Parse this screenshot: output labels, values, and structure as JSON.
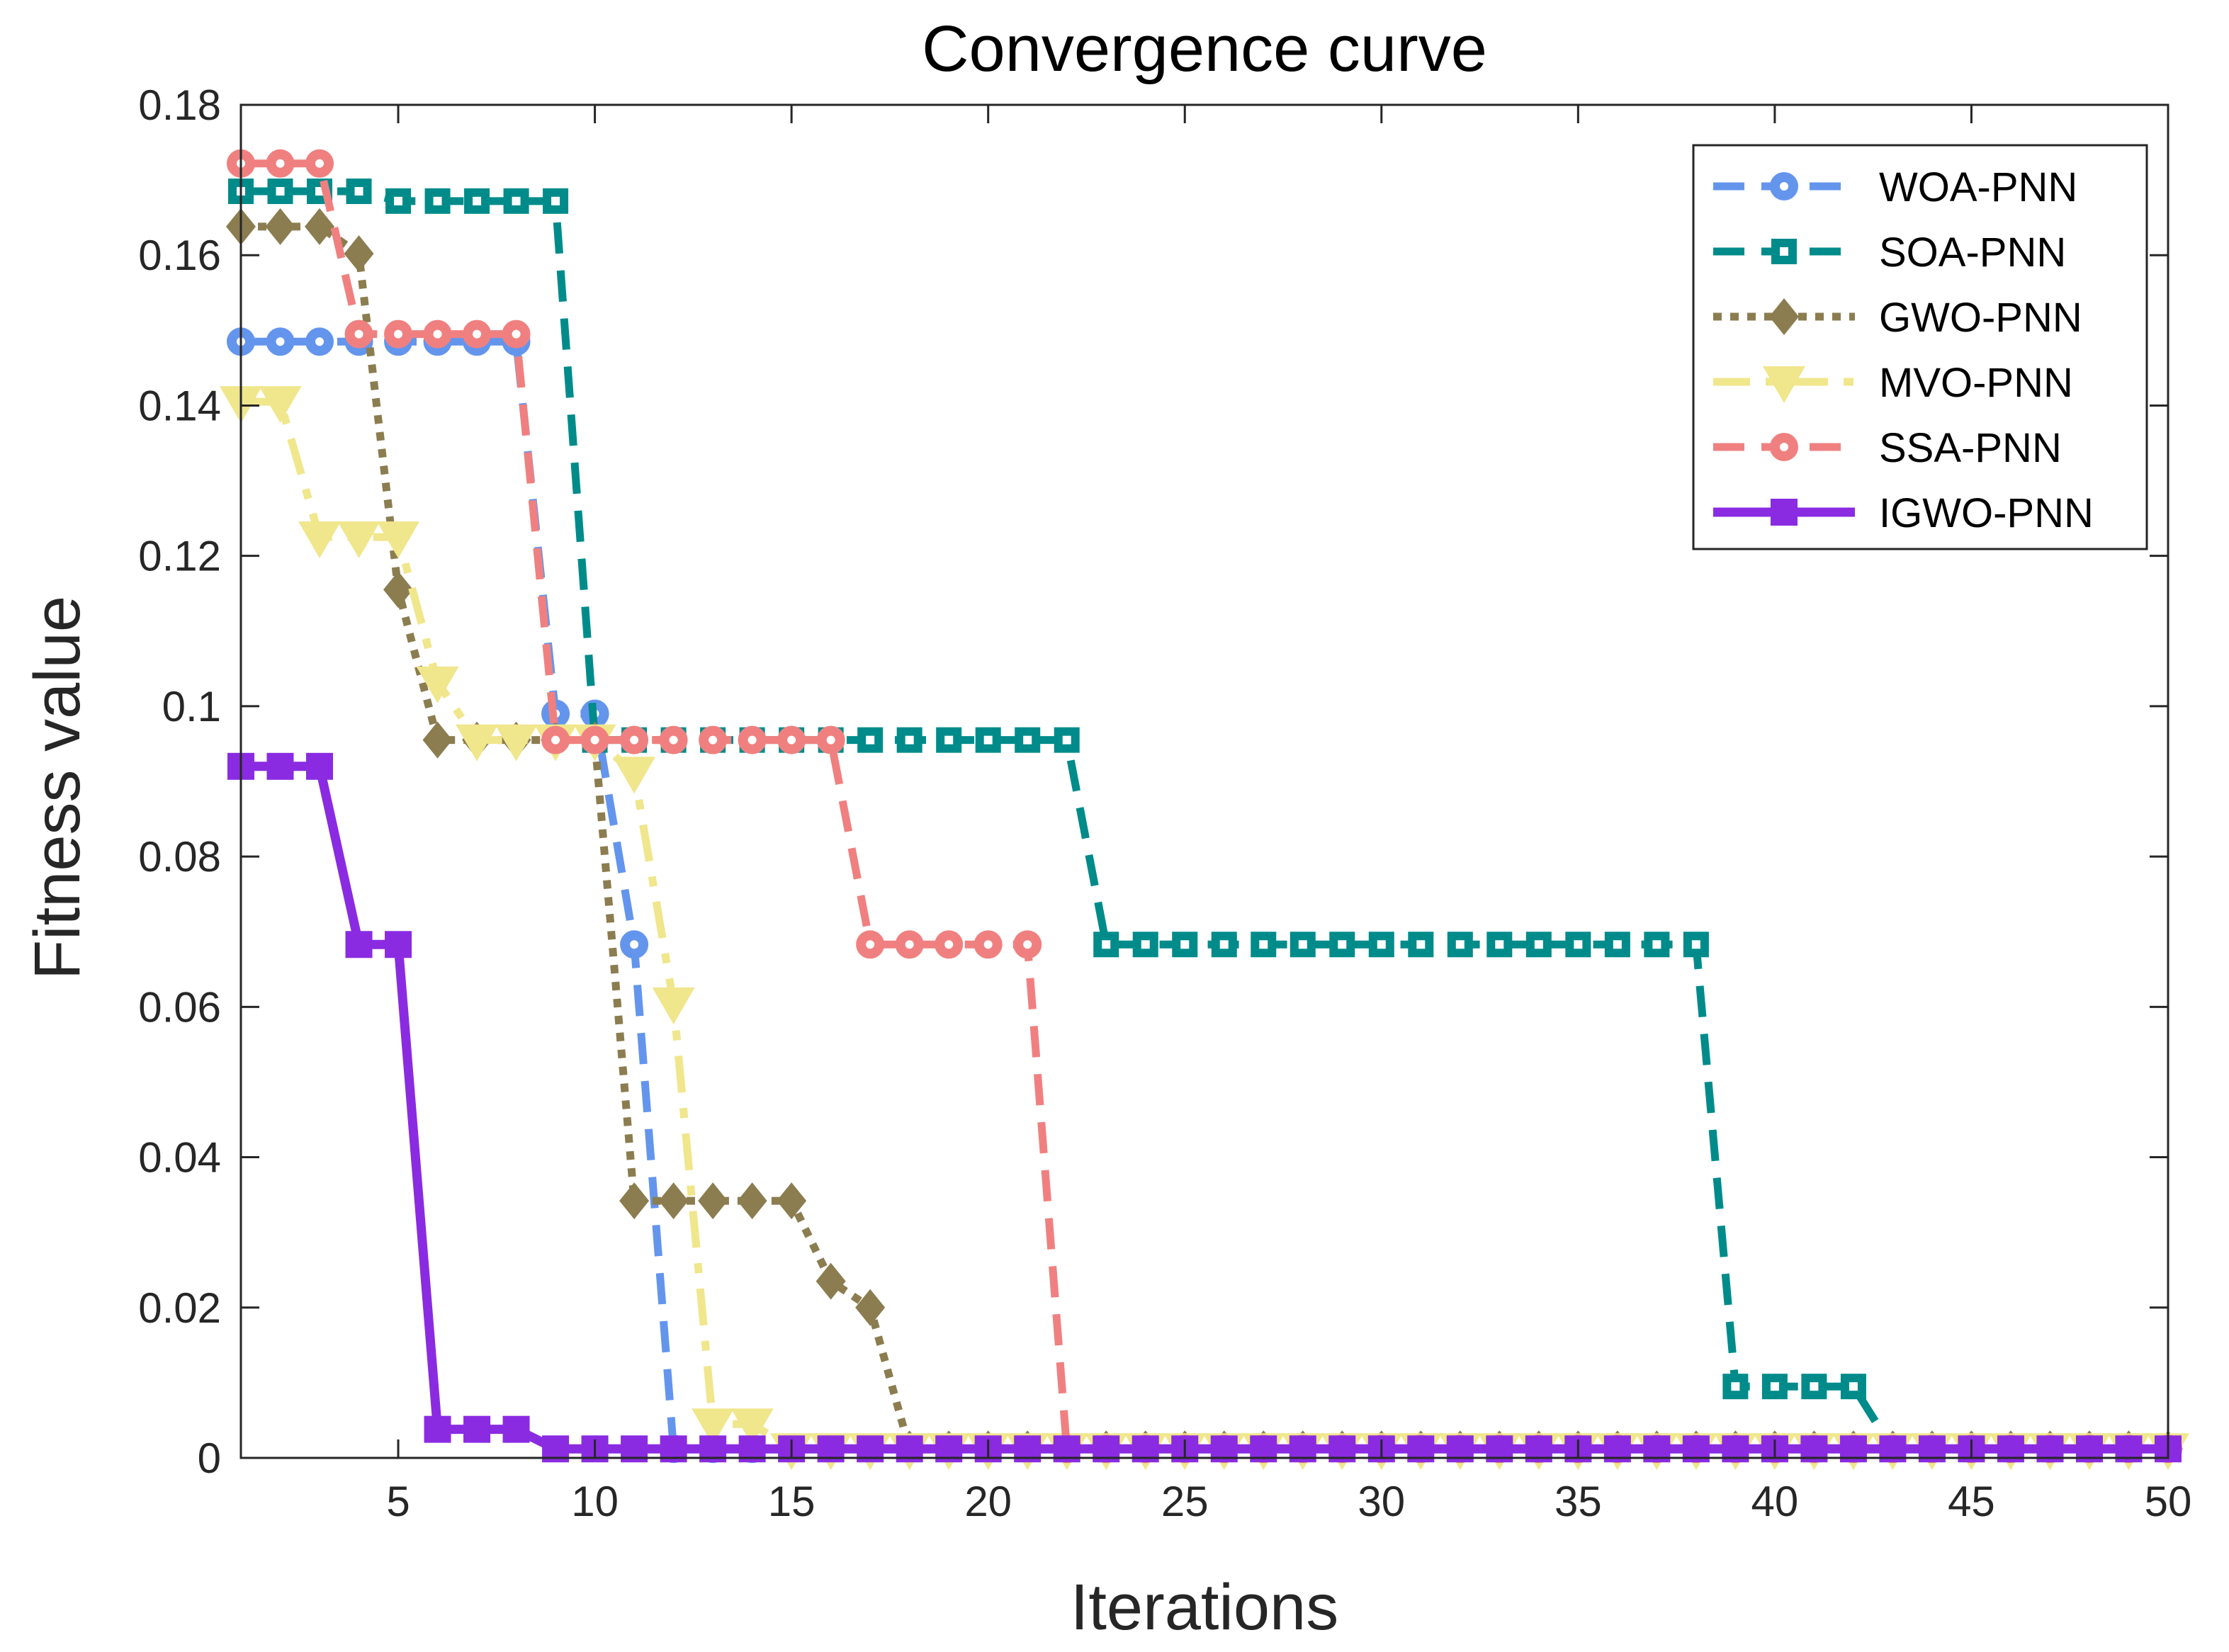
{
  "chart_data": {
    "type": "line",
    "title": "Convergence curve",
    "xlabel": "Iterations",
    "ylabel": "Fitness value",
    "xlim": [
      1,
      50
    ],
    "ylim": [
      0,
      0.18
    ],
    "xticks": [
      5,
      10,
      15,
      20,
      25,
      30,
      35,
      40,
      45,
      50
    ],
    "xtick_labels": [
      "5",
      "10",
      "15",
      "20",
      "25",
      "30",
      "35",
      "40",
      "45",
      "50"
    ],
    "yticks": [
      0,
      0.02,
      0.04,
      0.06,
      0.08,
      0.1,
      0.12,
      0.14,
      0.16,
      0.18
    ],
    "ytick_labels": [
      "0",
      "0.02",
      "0.04",
      "0.06",
      "0.08",
      "0.1",
      "0.12",
      "0.14",
      "0.16",
      "0.18"
    ],
    "grid": false,
    "legend_position": "top-right",
    "x": [
      1,
      2,
      3,
      4,
      5,
      6,
      7,
      8,
      9,
      10,
      11,
      12,
      13,
      14,
      15,
      16,
      17,
      18,
      19,
      20,
      21,
      22,
      23,
      24,
      25,
      26,
      27,
      28,
      29,
      30,
      31,
      32,
      33,
      34,
      35,
      36,
      37,
      38,
      39,
      40,
      41,
      42,
      43,
      44,
      45,
      46,
      47,
      48,
      49,
      50
    ],
    "series": [
      {
        "name": "WOA-PNN",
        "color": "#6495ED",
        "style": "dashed",
        "marker": "circle",
        "values": [
          0.1485,
          0.1485,
          0.1485,
          0.1485,
          0.1485,
          0.1485,
          0.1485,
          0.1485,
          0.099,
          0.099,
          0.0683,
          0.0012,
          0.0012,
          0.0012,
          0.0012,
          0.0012,
          0.0012,
          0.0012,
          0.0012,
          0.0012,
          0.0012,
          0.0012,
          0.0012,
          0.0012,
          0.0012,
          0.0012,
          0.0012,
          0.0012,
          0.0012,
          0.0012,
          0.0012,
          0.0012,
          0.0012,
          0.0012,
          0.0012,
          0.0012,
          0.0012,
          0.0012,
          0.0012,
          0.0012,
          0.0012,
          0.0012,
          0.0012,
          0.0012,
          0.0012,
          0.0012,
          0.0012,
          0.0012,
          0.0012,
          0.0012
        ]
      },
      {
        "name": "SOA-PNN",
        "color": "#008B8B",
        "style": "dashed",
        "marker": "square",
        "values": [
          0.1685,
          0.1685,
          0.1685,
          0.1685,
          0.1672,
          0.1672,
          0.1672,
          0.1672,
          0.1672,
          0.0955,
          0.0955,
          0.0955,
          0.0955,
          0.0955,
          0.0955,
          0.0955,
          0.0955,
          0.0955,
          0.0955,
          0.0955,
          0.0955,
          0.0955,
          0.0683,
          0.0683,
          0.0683,
          0.0683,
          0.0683,
          0.0683,
          0.0683,
          0.0683,
          0.0683,
          0.0683,
          0.0683,
          0.0683,
          0.0683,
          0.0683,
          0.0683,
          0.0683,
          0.0095,
          0.0095,
          0.0095,
          0.0095,
          0.0012,
          0.0012,
          0.0012,
          0.0012,
          0.0012,
          0.0012,
          0.0012,
          0.0012
        ]
      },
      {
        "name": "GWO-PNN",
        "color": "#8B7D50",
        "style": "dotted",
        "marker": "diamond",
        "values": [
          0.1638,
          0.1638,
          0.1638,
          0.1602,
          0.1155,
          0.0955,
          0.0955,
          0.0955,
          0.0955,
          0.0955,
          0.0342,
          0.0342,
          0.0342,
          0.0342,
          0.0342,
          0.0235,
          0.02,
          0.0012,
          0.0012,
          0.0012,
          0.0012,
          0.0012,
          0.0012,
          0.0012,
          0.0012,
          0.0012,
          0.0012,
          0.0012,
          0.0012,
          0.0012,
          0.0012,
          0.0012,
          0.0012,
          0.0012,
          0.0012,
          0.0012,
          0.0012,
          0.0012,
          0.0012,
          0.0012,
          0.0012,
          0.0012,
          0.0012,
          0.0012,
          0.0012,
          0.0012,
          0.0012,
          0.0012,
          0.0012,
          0.0012
        ]
      },
      {
        "name": "MVO-PNN",
        "color": "#F0E68C",
        "style": "dashdot",
        "marker": "triangle-down",
        "values": [
          0.1405,
          0.1405,
          0.1225,
          0.1225,
          0.1225,
          0.1032,
          0.0955,
          0.0955,
          0.0955,
          0.0955,
          0.0912,
          0.0605,
          0.0045,
          0.0045,
          0.0012,
          0.0012,
          0.0012,
          0.0012,
          0.0012,
          0.0012,
          0.0012,
          0.0012,
          0.0012,
          0.0012,
          0.0012,
          0.0012,
          0.0012,
          0.0012,
          0.0012,
          0.0012,
          0.0012,
          0.0012,
          0.0012,
          0.0012,
          0.0012,
          0.0012,
          0.0012,
          0.0012,
          0.0012,
          0.0012,
          0.0012,
          0.0012,
          0.0012,
          0.0012,
          0.0012,
          0.0012,
          0.0012,
          0.0012,
          0.0012,
          0.0012
        ]
      },
      {
        "name": "SSA-PNN",
        "color": "#F08080",
        "style": "dashed",
        "marker": "circle",
        "values": [
          0.1722,
          0.1722,
          0.1722,
          0.1495,
          0.1495,
          0.1495,
          0.1495,
          0.1495,
          0.0955,
          0.0955,
          0.0955,
          0.0955,
          0.0955,
          0.0955,
          0.0955,
          0.0955,
          0.0683,
          0.0683,
          0.0683,
          0.0683,
          0.0683,
          0.0012,
          0.0012,
          0.0012,
          0.0012,
          0.0012,
          0.0012,
          0.0012,
          0.0012,
          0.0012,
          0.0012,
          0.0012,
          0.0012,
          0.0012,
          0.0012,
          0.0012,
          0.0012,
          0.0012,
          0.0012,
          0.0012,
          0.0012,
          0.0012,
          0.0012,
          0.0012,
          0.0012,
          0.0012,
          0.0012,
          0.0012,
          0.0012,
          0.0012
        ]
      },
      {
        "name": "IGWO-PNN",
        "color": "#8A2BE2",
        "style": "solid",
        "marker": "square-filled",
        "values": [
          0.092,
          0.092,
          0.092,
          0.0683,
          0.0683,
          0.0038,
          0.0038,
          0.0038,
          0.0012,
          0.0012,
          0.0012,
          0.0012,
          0.0012,
          0.0012,
          0.0012,
          0.0012,
          0.0012,
          0.0012,
          0.0012,
          0.0012,
          0.0012,
          0.0012,
          0.0012,
          0.0012,
          0.0012,
          0.0012,
          0.0012,
          0.0012,
          0.0012,
          0.0012,
          0.0012,
          0.0012,
          0.0012,
          0.0012,
          0.0012,
          0.0012,
          0.0012,
          0.0012,
          0.0012,
          0.0012,
          0.0012,
          0.0012,
          0.0012,
          0.0012,
          0.0012,
          0.0012,
          0.0012,
          0.0012,
          0.0012,
          0.0012
        ]
      }
    ]
  }
}
